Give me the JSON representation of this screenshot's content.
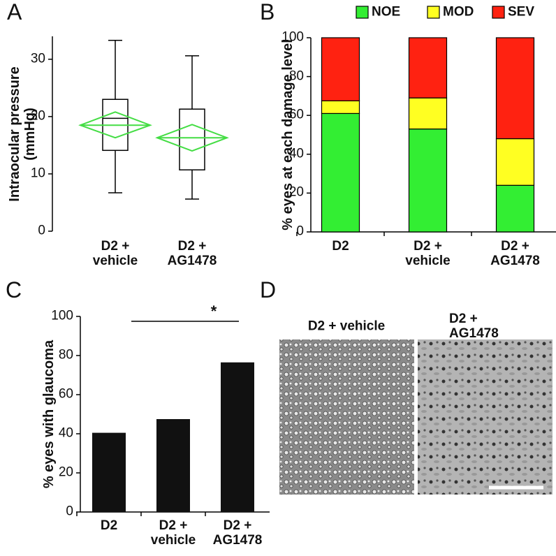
{
  "chart_data": [
    {
      "panel": "A",
      "type": "box",
      "ylabel": "Intraocular pressure (mmHg)",
      "categories": [
        "D2 + vehicle",
        "D2 + AG1478"
      ],
      "boxes": [
        {
          "min": 6.7,
          "q1": 14.1,
          "median": 19.7,
          "q3": 23.0,
          "max": 33.3,
          "mean": 18.5,
          "mean_ci": [
            16.3,
            20.8
          ]
        },
        {
          "min": 5.6,
          "q1": 10.7,
          "median": 16.3,
          "q3": 21.3,
          "max": 30.6,
          "mean": 16.3,
          "mean_ci": [
            14.0,
            18.6
          ]
        }
      ],
      "box_color": "#000000",
      "mean_color": "#44dd44",
      "ylim": [
        0,
        34
      ],
      "yticks": [
        0,
        10,
        20,
        30
      ]
    },
    {
      "panel": "B",
      "type": "stacked_bar",
      "ylabel": "% eyes at each damage level",
      "categories": [
        "D2",
        "D2 + vehicle",
        "D2 + AG1478"
      ],
      "series": [
        {
          "name": "NOE",
          "color": "#33ee33",
          "values": [
            61,
            53,
            24
          ]
        },
        {
          "name": "MOD",
          "color": "#ffff22",
          "values": [
            6.5,
            16,
            24
          ]
        },
        {
          "name": "SEV",
          "color": "#ff2211",
          "values": [
            32.5,
            31,
            52
          ]
        }
      ],
      "ylim": [
        0,
        100
      ],
      "yticks": [
        0,
        20,
        40,
        60,
        80,
        100
      ],
      "legend": "top"
    },
    {
      "panel": "C",
      "type": "bar",
      "ylabel": "% eyes with glaucoma",
      "categories": [
        "D2",
        "D2 + vehicle",
        "D2 + AG1478"
      ],
      "values": [
        40.5,
        47.5,
        76.5
      ],
      "color": "#111111",
      "ylim": [
        0,
        100
      ],
      "yticks": [
        0,
        20,
        40,
        60,
        80,
        100
      ],
      "annotations": [
        "*"
      ]
    }
  ],
  "panel_d": {
    "label": "D",
    "images": [
      {
        "title": "D2 + vehicle"
      },
      {
        "title": "D2 + AG1478"
      }
    ]
  }
}
